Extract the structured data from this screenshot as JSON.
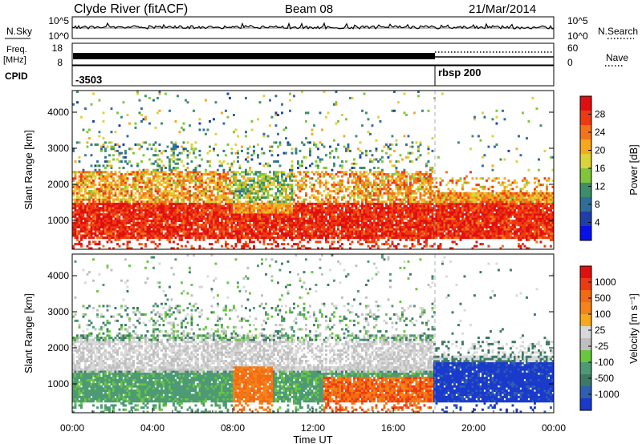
{
  "header": {
    "station": "Clyde River (fitACF)",
    "beam": "Beam 08",
    "date": "21/Mar/2014"
  },
  "noise_panel": {
    "left_label": "N.Sky",
    "right_label": "N.Search",
    "left_ticks": [
      "10^5",
      "10^0"
    ],
    "right_ticks": [
      "10^5",
      "10^0"
    ]
  },
  "freq_panel": {
    "left_label_top": "Freq.",
    "left_label_unit": "[MHz]",
    "left_ticks": [
      "18",
      "8"
    ],
    "right_label": "Nave",
    "right_ticks": [
      "60",
      "0"
    ]
  },
  "cpid_panel": {
    "label": "CPID",
    "first_program": "-3503",
    "second_program": "rbsp 200"
  },
  "chart_data": [
    {
      "type": "heatmap",
      "name": "power",
      "title": "",
      "ylabel": "Slant Range [km]",
      "ylim": [
        200,
        4600
      ],
      "yticks": [
        "1000",
        "2000",
        "3000",
        "4000"
      ],
      "colorbar_label": "Power [dB]",
      "colorbar_ticks": [
        "28",
        "24",
        "20",
        "16",
        "12",
        "8",
        "4"
      ],
      "colors": [
        "#0a10e8",
        "#1f3fa8",
        "#2f6e9a",
        "#3c8f6a",
        "#7fc63a",
        "#dcd23a",
        "#f7a81e",
        "#f57318",
        "#ee3a12",
        "#e01010"
      ]
    },
    {
      "type": "heatmap",
      "name": "velocity",
      "title": "",
      "xlabel": "Time UT",
      "ylabel": "Slant Range [km]",
      "ylim": [
        200,
        4600
      ],
      "yticks": [
        "1000",
        "2000",
        "3000",
        "4000"
      ],
      "xticks": [
        "00:00",
        "04:00",
        "08:00",
        "12:00",
        "16:00",
        "20:00",
        "00:00"
      ],
      "colorbar_label": "Velocity [m s⁻¹]",
      "colorbar_ticks": [
        "1000",
        "500",
        "100",
        "25",
        "-25",
        "-100",
        "-500",
        "-1000"
      ],
      "colors": [
        "#1a3acb",
        "#2f5fb0",
        "#3d7a66",
        "#4d9a74",
        "#69c63f",
        "#bfbfbf",
        "#d8d8d8",
        "#f7a81e",
        "#f5821a",
        "#f26a14",
        "#ee3a12",
        "#e01010"
      ]
    }
  ]
}
